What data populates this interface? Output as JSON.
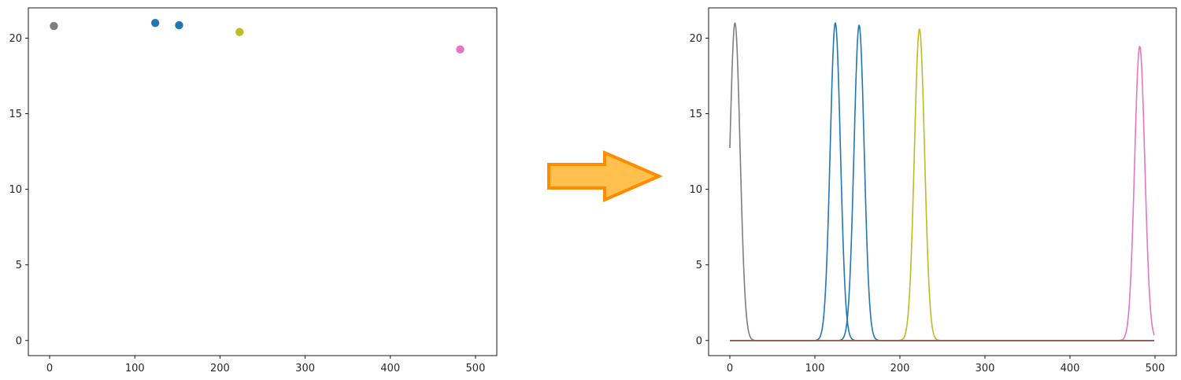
{
  "chart_data": [
    {
      "type": "scatter",
      "title": "",
      "xlabel": "",
      "ylabel": "",
      "xlim": [
        -25,
        525
      ],
      "ylim": [
        -1,
        22
      ],
      "xticks": [
        0,
        100,
        200,
        300,
        400,
        500
      ],
      "yticks": [
        0,
        5,
        10,
        15,
        20
      ],
      "grid": false,
      "points": [
        {
          "x": 5,
          "y": 20.8,
          "color": "#7f7f7f"
        },
        {
          "x": 124,
          "y": 21.0,
          "color": "#1f77b4"
        },
        {
          "x": 152,
          "y": 20.85,
          "color": "#1f77b4"
        },
        {
          "x": 223,
          "y": 20.4,
          "color": "#bcbd22"
        },
        {
          "x": 482,
          "y": 19.25,
          "color": "#e377c2"
        }
      ]
    },
    {
      "type": "line",
      "title": "",
      "xlabel": "",
      "ylabel": "",
      "xlim": [
        -25,
        525
      ],
      "ylim": [
        -1,
        22
      ],
      "xticks": [
        0,
        100,
        200,
        300,
        400,
        500
      ],
      "yticks": [
        0,
        5,
        10,
        15,
        20
      ],
      "grid": false,
      "x_start": 0,
      "x_end": 499,
      "series": [
        {
          "color": "#7f7f7f",
          "center": 6,
          "peak": 21.0,
          "width": 6
        },
        {
          "color": "#1f77b4",
          "center": 124,
          "peak": 21.0,
          "width": 6
        },
        {
          "color": "#1f77b4",
          "center": 152,
          "peak": 20.85,
          "width": 6
        },
        {
          "color": "#bcbd22",
          "center": 223,
          "peak": 20.6,
          "width": 6
        },
        {
          "color": "#e377c2",
          "center": 482,
          "peak": 19.45,
          "width": 6
        },
        {
          "color": "#8c564b",
          "center": null,
          "peak": 0,
          "width": 0
        }
      ]
    }
  ],
  "decoration": {
    "arrow": {
      "fill": "#ffc04d",
      "stroke": "#ff8c00",
      "icon": "right-arrow-icon"
    }
  }
}
